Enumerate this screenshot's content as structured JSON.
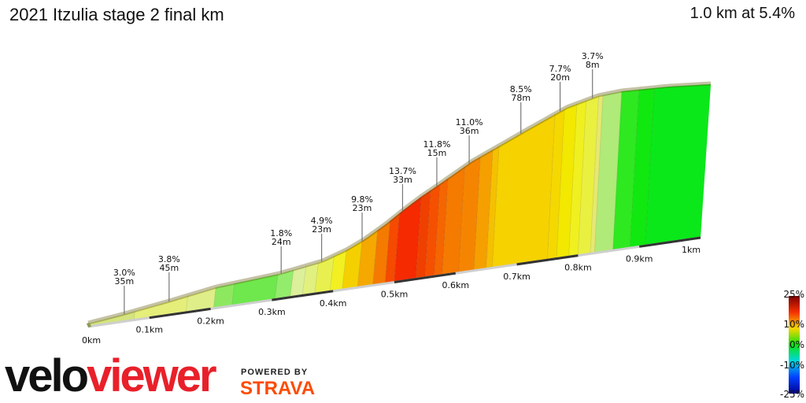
{
  "header": {
    "title": "2021 Itzulia stage 2 final km",
    "summary": "1.0 km at 5.4%"
  },
  "chart_data": {
    "type": "area",
    "title": "2021 Itzulia stage 2 final km",
    "x_unit": "km",
    "xlim": [
      0,
      1
    ],
    "x_ticks": [
      "0km",
      "0.1km",
      "0.2km",
      "0.3km",
      "0.4km",
      "0.5km",
      "0.6km",
      "0.7km",
      "0.8km",
      "0.9km",
      "1km"
    ],
    "segments": [
      {
        "start_km": 0.0,
        "color": "#d4e47e"
      },
      {
        "start_km": 0.075,
        "color": "#e6ee7a"
      },
      {
        "start_km": 0.16,
        "color": "#dfee88"
      },
      {
        "start_km": 0.205,
        "color": "#8de860"
      },
      {
        "start_km": 0.235,
        "color": "#6ee84c"
      },
      {
        "start_km": 0.305,
        "color": "#94ec6c"
      },
      {
        "start_km": 0.33,
        "color": "#dcef9a"
      },
      {
        "start_km": 0.35,
        "color": "#e2f080"
      },
      {
        "start_km": 0.37,
        "color": "#e8f050"
      },
      {
        "start_km": 0.395,
        "color": "#f2f020"
      },
      {
        "start_km": 0.415,
        "color": "#f5d000"
      },
      {
        "start_km": 0.44,
        "color": "#f5a800"
      },
      {
        "start_km": 0.465,
        "color": "#f57a00"
      },
      {
        "start_km": 0.485,
        "color": "#f54a00"
      },
      {
        "start_km": 0.5,
        "color": "#f52a00"
      },
      {
        "start_km": 0.535,
        "color": "#f04000"
      },
      {
        "start_km": 0.55,
        "color": "#f55000"
      },
      {
        "start_km": 0.565,
        "color": "#f56500"
      },
      {
        "start_km": 0.578,
        "color": "#f57a00"
      },
      {
        "start_km": 0.605,
        "color": "#f58500"
      },
      {
        "start_km": 0.63,
        "color": "#f5a000"
      },
      {
        "start_km": 0.65,
        "color": "#f5c000"
      },
      {
        "start_km": 0.66,
        "color": "#f5d200"
      },
      {
        "start_km": 0.75,
        "color": "#f5d800"
      },
      {
        "start_km": 0.765,
        "color": "#f2e800"
      },
      {
        "start_km": 0.785,
        "color": "#f0f020"
      },
      {
        "start_km": 0.8,
        "color": "#eaf040"
      },
      {
        "start_km": 0.82,
        "color": "#e6e870"
      },
      {
        "start_km": 0.827,
        "color": "#b0ea78"
      },
      {
        "start_km": 0.857,
        "color": "#2ee820"
      },
      {
        "start_km": 0.885,
        "color": "#10e810"
      },
      {
        "start_km": 0.91,
        "color": "#0ae81a"
      }
    ],
    "annotations": [
      {
        "km": 0.058,
        "gradient": "3.0%",
        "length": "35m"
      },
      {
        "km": 0.13,
        "gradient": "3.8%",
        "length": "45m"
      },
      {
        "km": 0.31,
        "gradient": "1.8%",
        "length": "24m"
      },
      {
        "km": 0.375,
        "gradient": "4.9%",
        "length": "23m"
      },
      {
        "km": 0.44,
        "gradient": "9.8%",
        "length": "23m"
      },
      {
        "km": 0.505,
        "gradient": "13.7%",
        "length": "33m"
      },
      {
        "km": 0.56,
        "gradient": "11.8%",
        "length": "15m"
      },
      {
        "km": 0.612,
        "gradient": "11.0%",
        "length": "36m"
      },
      {
        "km": 0.695,
        "gradient": "8.5%",
        "length": "78m"
      },
      {
        "km": 0.758,
        "gradient": "7.7%",
        "length": "20m"
      },
      {
        "km": 0.81,
        "gradient": "3.7%",
        "length": "8m"
      }
    ]
  },
  "colorbar": {
    "labels": [
      "25%",
      "10%",
      "0%",
      "-10%",
      "-25%"
    ],
    "colors": [
      "#7a0000",
      "#f53000",
      "#f5d800",
      "#10e010",
      "#00d8e0",
      "#0040ff",
      "#000090"
    ]
  },
  "branding": {
    "logo_velo": "velo",
    "logo_viewer": "viewer",
    "powered_by": "POWERED BY",
    "strava": "STRAVA"
  }
}
